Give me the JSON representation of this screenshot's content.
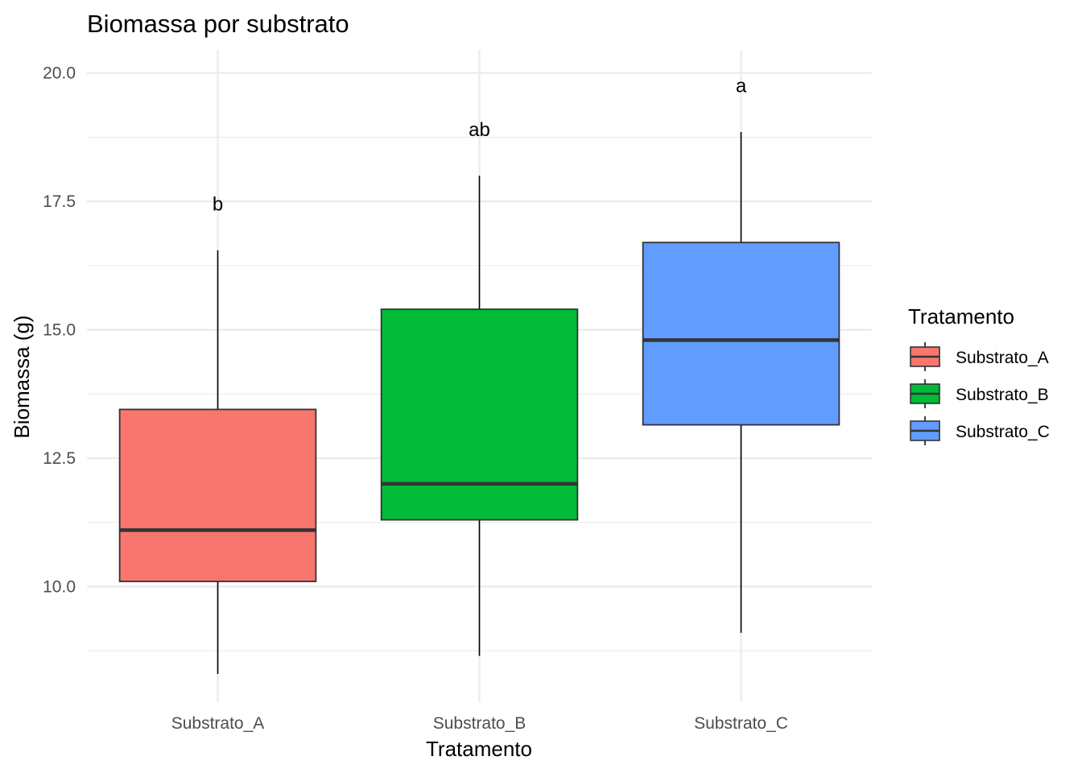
{
  "chart_data": {
    "type": "boxplot",
    "title": "Biomassa por substrato",
    "xlabel": "Tratamento",
    "ylabel": "Biomassa (g)",
    "ylim": [
      7.75,
      20.45
    ],
    "yticks": [
      10.0,
      12.5,
      15.0,
      17.5,
      20.0
    ],
    "ytick_labels": [
      "10.0",
      "12.5",
      "15.0",
      "17.5",
      "20.0"
    ],
    "grid": true,
    "legend": {
      "title": "Tratamento",
      "position": "right",
      "entries": [
        "Substrato_A",
        "Substrato_B",
        "Substrato_C"
      ]
    },
    "categories": [
      "Substrato_A",
      "Substrato_B",
      "Substrato_C"
    ],
    "boxes": [
      {
        "category": "Substrato_A",
        "min": 8.3,
        "q1": 10.1,
        "median": 11.1,
        "q3": 13.45,
        "max": 16.55,
        "letter": "b",
        "letter_y": 17.45,
        "color": "#F8766D"
      },
      {
        "category": "Substrato_B",
        "min": 8.65,
        "q1": 11.3,
        "median": 12.0,
        "q3": 15.4,
        "max": 18.0,
        "letter": "ab",
        "letter_y": 18.9,
        "color": "#00BA38"
      },
      {
        "category": "Substrato_C",
        "min": 9.1,
        "q1": 13.15,
        "median": 14.8,
        "q3": 16.7,
        "max": 18.85,
        "letter": "a",
        "letter_y": 19.75,
        "color": "#619CFF"
      }
    ]
  }
}
